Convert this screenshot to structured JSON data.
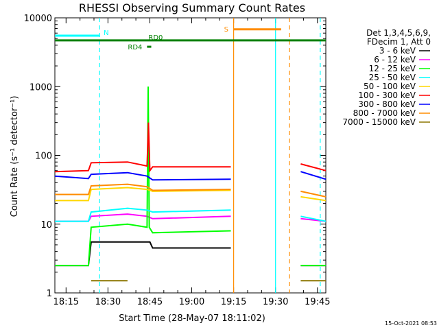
{
  "chart_data": {
    "type": "line",
    "title": "RHESSI Observing Summary Count Rates",
    "xlabel": "Start Time (28-May-07 18:11:02)",
    "ylabel": "Count Rate (s⁻¹ detector⁻¹)",
    "y_scale": "log",
    "ylim": [
      1,
      10000
    ],
    "xlim_minutes": [
      18.183,
      19.8
    ],
    "x_tick_labels": [
      "18:15",
      "18:30",
      "18:45",
      "19:00",
      "19:15",
      "19:30",
      "19:45"
    ],
    "x_tick_values_min": [
      1095,
      1110,
      1125,
      1140,
      1155,
      1170,
      1185
    ],
    "x_range_min": [
      1091,
      1188
    ],
    "y_tick_labels": [
      "1",
      "10",
      "100",
      "1000",
      "10000"
    ],
    "legend_header": [
      "Det 1,3,4,5,6,9,",
      "FDecim 1, Att 0"
    ],
    "series": [
      {
        "name": "3 - 6 keV",
        "color": "#000000",
        "segments": [
          {
            "x": [
              1091,
              1103,
              1104,
              1117,
              1125,
              1126,
              1154
            ],
            "y": [
              2.5,
              2.5,
              5.5,
              5.5,
              5.5,
              4.5,
              4.5
            ]
          },
          {
            "x": [
              1179,
              1188
            ],
            "y": [
              2.5,
              2.5
            ]
          }
        ]
      },
      {
        "name": "6 - 12 keV",
        "color": "#ff00ff",
        "segments": [
          {
            "x": [
              1091,
              1103,
              1104,
              1117,
              1124,
              1126,
              1154
            ],
            "y": [
              11,
              11,
              13,
              14,
              13,
              12,
              13
            ]
          },
          {
            "x": [
              1179,
              1188
            ],
            "y": [
              12,
              11
            ]
          }
        ]
      },
      {
        "name": "12 - 25 keV",
        "color": "#00ff00",
        "segments": [
          {
            "x": [
              1091,
              1103,
              1104,
              1117,
              1124,
              1124.4,
              1124.8,
              1126,
              1154
            ],
            "y": [
              2.5,
              2.5,
              9,
              10,
              9,
              1000,
              9,
              7.5,
              8
            ]
          },
          {
            "x": [
              1179,
              1188
            ],
            "y": [
              2.5,
              2.5
            ]
          }
        ]
      },
      {
        "name": "25 - 50 keV",
        "color": "#00ffff",
        "segments": [
          {
            "x": [
              1091,
              1103,
              1104,
              1117,
              1124,
              1126,
              1154
            ],
            "y": [
              11,
              11,
              15,
              17,
              16,
              15,
              16
            ]
          },
          {
            "x": [
              1179,
              1188
            ],
            "y": [
              13,
              11
            ]
          }
        ]
      },
      {
        "name": "50 - 100 keV",
        "color": "#ffd700",
        "segments": [
          {
            "x": [
              1091,
              1103,
              1104,
              1117,
              1124,
              1126,
              1154
            ],
            "y": [
              22,
              22,
              32,
              34,
              32,
              30,
              31
            ]
          },
          {
            "x": [
              1179,
              1188
            ],
            "y": [
              25,
              22
            ]
          }
        ]
      },
      {
        "name": "100 - 300 keV",
        "color": "#ff0000",
        "segments": [
          {
            "x": [
              1091,
              1103,
              1104,
              1117,
              1124,
              1124.5,
              1125,
              1126,
              1154
            ],
            "y": [
              58,
              60,
              78,
              80,
              70,
              300,
              60,
              68,
              68
            ]
          },
          {
            "x": [
              1179,
              1188
            ],
            "y": [
              75,
              60
            ]
          }
        ]
      },
      {
        "name": "300 - 800 keV",
        "color": "#0000ff",
        "segments": [
          {
            "x": [
              1091,
              1103,
              1104,
              1117,
              1124,
              1126,
              1154
            ],
            "y": [
              50,
              46,
              53,
              56,
              50,
              44,
              45
            ]
          },
          {
            "x": [
              1179,
              1188
            ],
            "y": [
              58,
              45
            ]
          }
        ]
      },
      {
        "name": "800 - 7000 keV",
        "color": "#ff8c00",
        "segments": [
          {
            "x": [
              1091,
              1103,
              1104,
              1117,
              1124,
              1126,
              1154
            ],
            "y": [
              27,
              27,
              36,
              38,
              35,
              31,
              32
            ]
          },
          {
            "x": [
              1179,
              1188
            ],
            "y": [
              30,
              25
            ]
          }
        ]
      },
      {
        "name": "7000 - 15000 keV",
        "color": "#8b7500",
        "segments": [
          {
            "x": [
              1104,
              1117
            ],
            "y": [
              1.5,
              1.5
            ]
          },
          {
            "x": [
              1179,
              1188
            ],
            "y": [
              1.5,
              1.5
            ]
          }
        ]
      }
    ],
    "annotations": [
      {
        "label": "N",
        "color": "#00ffff",
        "x": [
          1091,
          1107
        ],
        "y": 5500
      },
      {
        "label": "S",
        "color": "#ff8c00",
        "x": [
          1155,
          1172
        ],
        "y": 6800
      },
      {
        "label": "RD0",
        "color": "#008000",
        "x": [
          1091,
          1188
        ],
        "y": 4700
      },
      {
        "label": "RD4",
        "color": "#008000",
        "x": [
          1124,
          1125.5
        ],
        "y": 3800
      }
    ],
    "markers": [
      {
        "x": 1107,
        "color": "#00ffff",
        "style": "dashed"
      },
      {
        "x": 1155,
        "color": "#ff8c00",
        "style": "solid"
      },
      {
        "x": 1170,
        "color": "#00ffff",
        "style": "solid"
      },
      {
        "x": 1175,
        "color": "#ff8c00",
        "style": "dashed"
      },
      {
        "x": 1186,
        "color": "#00ffff",
        "style": "dashed"
      }
    ]
  },
  "footer": {
    "timestamp": "15-Oct-2021 08:53"
  }
}
